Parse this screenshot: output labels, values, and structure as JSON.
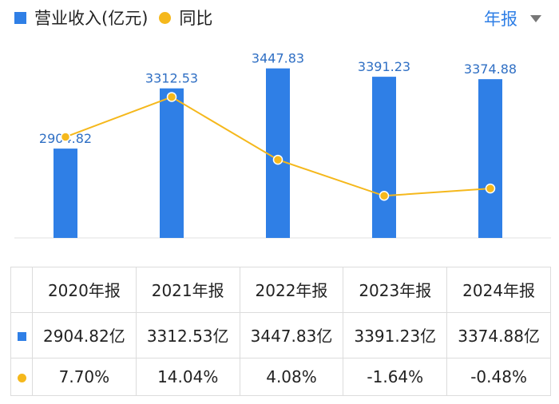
{
  "legend": {
    "revenue": "营业收入(亿元)",
    "yoy": "同比"
  },
  "period_selector": {
    "label": "年报",
    "icon": "caret-down-icon"
  },
  "colors": {
    "bar": "#2f7fe6",
    "line": "#f5b81c",
    "positive": "#d9534f",
    "negative": "#2e9e5b"
  },
  "chart_data": {
    "type": "bar",
    "categories": [
      "2020年报",
      "2021年报",
      "2022年报",
      "2023年报",
      "2024年报"
    ],
    "series": [
      {
        "name": "营业收入(亿元)",
        "type": "bar",
        "values": [
          2904.82,
          3312.53,
          3447.83,
          3391.23,
          3374.88
        ],
        "labels": [
          "2904.82",
          "3312.53",
          "3447.83",
          "3391.23",
          "3374.88"
        ]
      },
      {
        "name": "同比",
        "type": "line",
        "values": [
          7.7,
          14.04,
          4.08,
          -1.64,
          -0.48
        ]
      }
    ]
  },
  "table": {
    "headers": [
      "2020年报",
      "2021年报",
      "2022年报",
      "2023年报",
      "2024年报"
    ],
    "revenue": [
      "2904.82亿",
      "3312.53亿",
      "3447.83亿",
      "3391.23亿",
      "3374.88亿"
    ],
    "yoy": [
      "7.70%",
      "14.04%",
      "4.08%",
      "-1.64%",
      "-0.48%"
    ]
  }
}
